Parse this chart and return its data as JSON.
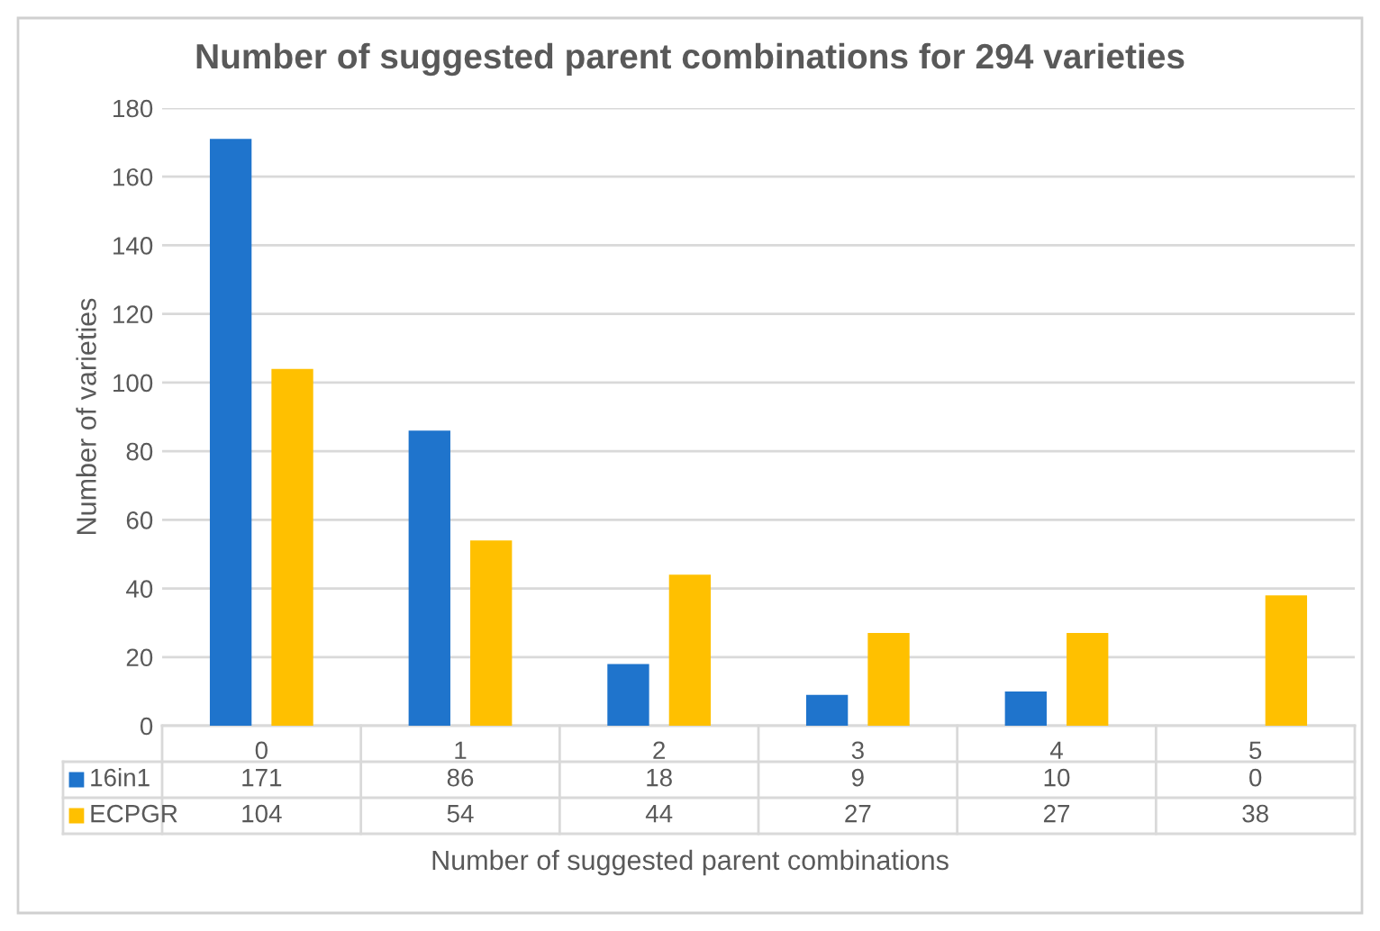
{
  "chart_data": {
    "type": "bar",
    "title": "Number of suggested parent combinations for 294 varieties",
    "xlabel": "Number of suggested parent combinations",
    "ylabel": "Number of varieties",
    "categories": [
      "0",
      "1",
      "2",
      "3",
      "4",
      "5"
    ],
    "series": [
      {
        "name": "16in1",
        "color": "#1f74cc",
        "values": [
          171,
          86,
          18,
          9,
          10,
          0
        ]
      },
      {
        "name": "ECPGR",
        "color": "#ffc000",
        "values": [
          104,
          54,
          44,
          27,
          27,
          38
        ]
      }
    ],
    "ylim": [
      0,
      180
    ],
    "yticks": [
      0,
      20,
      40,
      60,
      80,
      100,
      120,
      140,
      160,
      180
    ],
    "grid": "y",
    "data_labels": true,
    "legend": "bottom"
  }
}
